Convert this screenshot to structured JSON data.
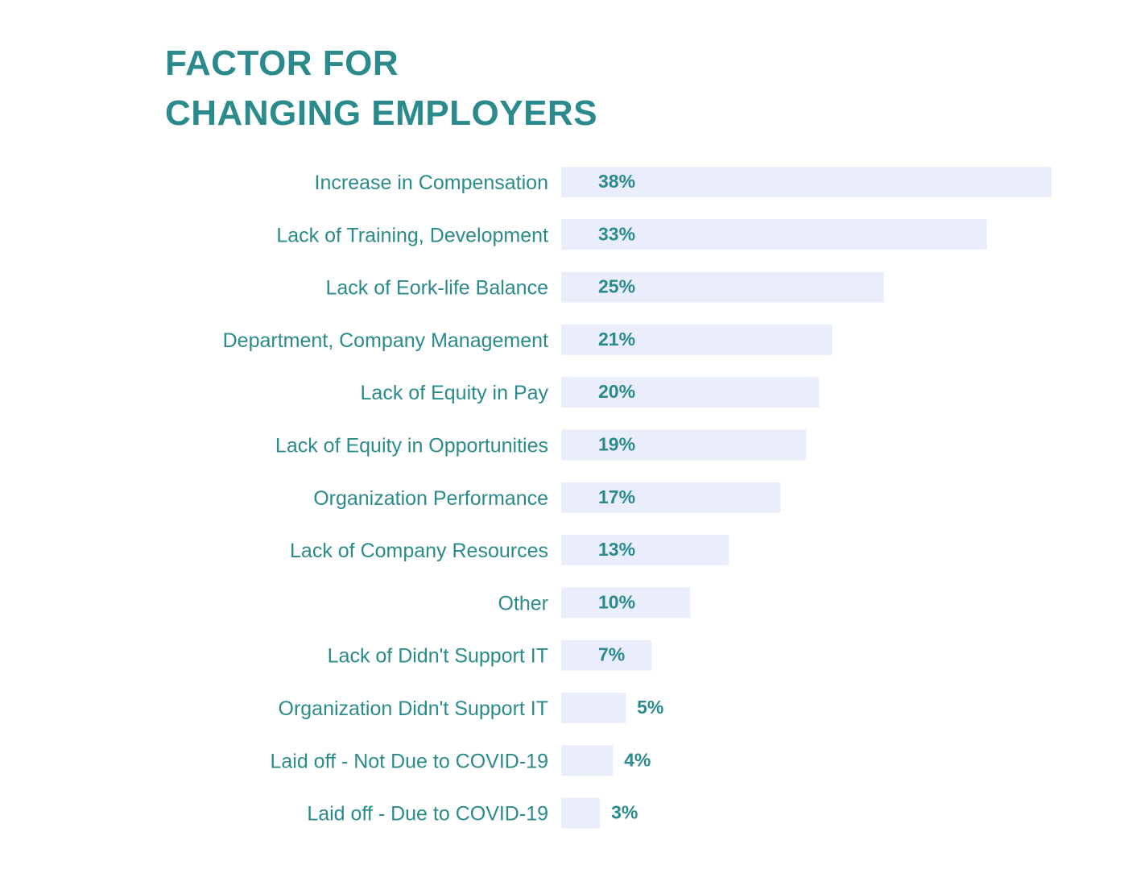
{
  "title_lines": [
    "FACTOR FOR",
    "CHANGING EMPLOYERS"
  ],
  "colors": {
    "text": "#2a8a8c",
    "bar": "#e9edfc"
  },
  "chart_data": {
    "type": "bar",
    "orientation": "horizontal",
    "title": "FACTOR FOR CHANGING EMPLOYERS",
    "xlabel": "",
    "ylabel": "",
    "unit": "%",
    "grid": false,
    "categories": [
      "Increase in Compensation",
      "Lack of Training, Development",
      "Lack of Eork-life Balance",
      "Department, Company Management",
      "Lack of Equity in Pay",
      "Lack of Equity in Opportunities",
      "Organization Performance",
      "Lack of Company Resources",
      "Other",
      "Lack of Didn't Support IT",
      "Organization Didn't Support IT",
      "Laid off - Not Due to COVID-19",
      "Laid off - Due to COVID-19"
    ],
    "values": [
      38,
      33,
      25,
      21,
      20,
      19,
      17,
      13,
      10,
      7,
      5,
      4,
      3
    ],
    "value_labels": [
      "38%",
      "33%",
      "25%",
      "21%",
      "20%",
      "19%",
      "17%",
      "13%",
      "10%",
      "7%",
      "5%",
      "4%",
      "3%"
    ]
  }
}
